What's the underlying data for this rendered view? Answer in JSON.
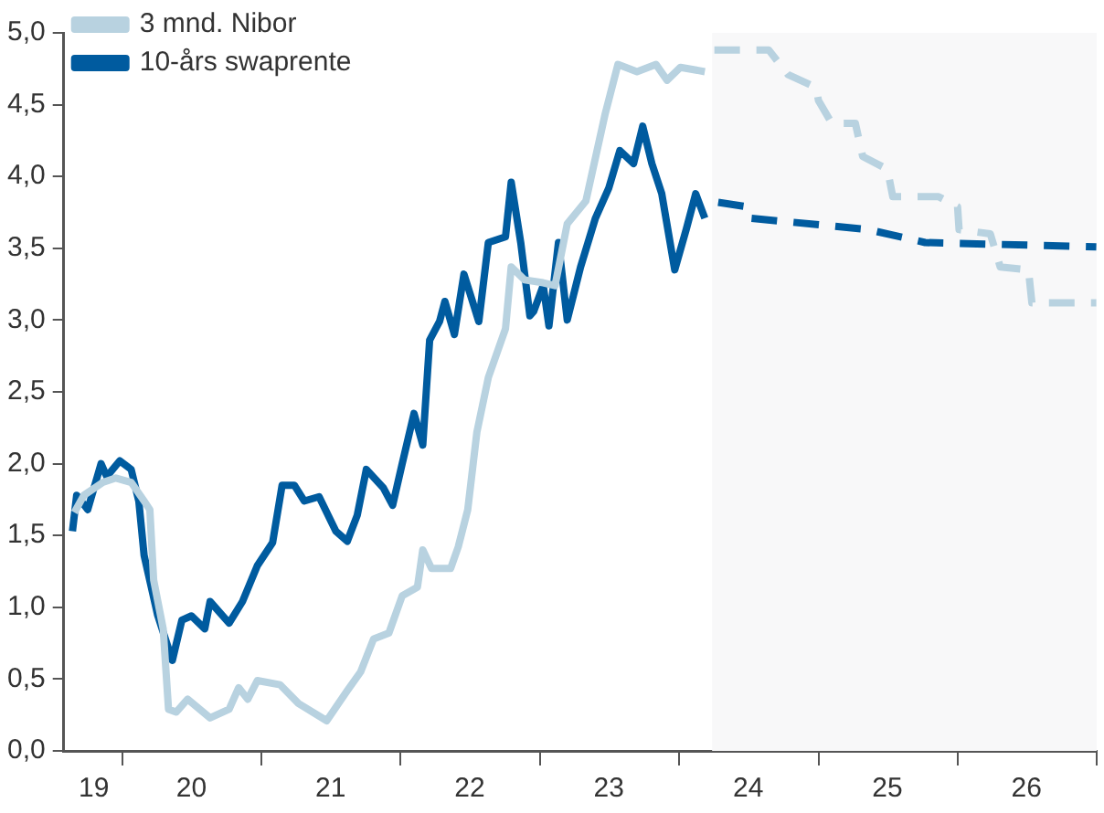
{
  "chart_data": {
    "type": "line",
    "xlim": [
      "2019-08-01",
      "2027-01-01"
    ],
    "ylim": [
      0,
      5
    ],
    "yticks": [
      {
        "value": 0,
        "label": "0,0"
      },
      {
        "value": 0.5,
        "label": "0,5"
      },
      {
        "value": 1,
        "label": "1,0"
      },
      {
        "value": 1.5,
        "label": "1,5"
      },
      {
        "value": 2,
        "label": "2,0"
      },
      {
        "value": 2.5,
        "label": "2,5"
      },
      {
        "value": 3,
        "label": "3,0"
      },
      {
        "value": 3.5,
        "label": "3,5"
      },
      {
        "value": 4,
        "label": "4,0"
      },
      {
        "value": 4.5,
        "label": "4,5"
      },
      {
        "value": 5,
        "label": "5,0"
      }
    ],
    "xticks": [
      {
        "value": "2019-10-19",
        "label": "19"
      },
      {
        "value": "2020-01-01",
        "label": null
      },
      {
        "value": "2020-07-01",
        "label": "20"
      },
      {
        "value": "2021-01-01",
        "label": null
      },
      {
        "value": "2021-07-01",
        "label": "21"
      },
      {
        "value": "2022-01-01",
        "label": null
      },
      {
        "value": "2022-07-01",
        "label": "22"
      },
      {
        "value": "2023-01-01",
        "label": null
      },
      {
        "value": "2023-07-01",
        "label": "23"
      },
      {
        "value": "2024-01-01",
        "label": null
      },
      {
        "value": "2024-07-01",
        "label": "24"
      },
      {
        "value": "2025-01-01",
        "label": null
      },
      {
        "value": "2025-07-01",
        "label": "25"
      },
      {
        "value": "2026-01-01",
        "label": null
      },
      {
        "value": "2026-07-01",
        "label": "26"
      },
      {
        "value": "2027-01-01",
        "label": null
      }
    ],
    "grid": false,
    "legend": "top left",
    "marker": "none",
    "bands": [
      {
        "axis": "x",
        "from": "2024-03-28",
        "to": "2027-01-01",
        "color": "#f8f8f9"
      }
    ],
    "series": [
      {
        "name": "3 mnd. Nibor",
        "color": "#b8d2e0",
        "line_style": "solid",
        "x": [
          "2019-08-29",
          "2019-09-23",
          "2019-11-12",
          "2019-12-16",
          "2020-01-25",
          "2020-02-28",
          "2020-03-14",
          "2020-03-24",
          "2020-04-18",
          "2020-05-02",
          "2020-05-22",
          "2020-06-21",
          "2020-08-19",
          "2020-10-08",
          "2020-11-02",
          "2020-11-26",
          "2020-12-21",
          "2021-02-19",
          "2021-04-08",
          "2021-06-21",
          "2021-08-14",
          "2021-09-18",
          "2021-10-22",
          "2021-12-01",
          "2022-01-05",
          "2022-02-14",
          "2022-02-28",
          "2022-03-23",
          "2022-05-12",
          "2022-06-01",
          "2022-06-26",
          "2022-07-20",
          "2022-08-19",
          "2022-10-03",
          "2022-10-18",
          "2022-11-22",
          "2023-01-10",
          "2023-02-10",
          "2023-03-14",
          "2023-05-02",
          "2023-06-21",
          "2023-07-25",
          "2023-09-13",
          "2023-11-02",
          "2023-12-01",
          "2024-01-05",
          "2024-03-09"
        ],
        "values": [
          1.66,
          1.78,
          1.87,
          1.9,
          1.87,
          1.74,
          1.68,
          1.19,
          0.85,
          0.29,
          0.27,
          0.36,
          0.23,
          0.29,
          0.44,
          0.36,
          0.49,
          0.46,
          0.33,
          0.21,
          0.42,
          0.55,
          0.78,
          0.82,
          1.08,
          1.14,
          1.4,
          1.27,
          1.27,
          1.42,
          1.68,
          2.22,
          2.6,
          2.94,
          3.37,
          3.28,
          3.26,
          3.24,
          3.67,
          3.83,
          4.43,
          4.78,
          4.73,
          4.78,
          4.67,
          4.76,
          4.73
        ]
      },
      {
        "name": "10-års swaprente",
        "color": "#005b9f",
        "line_style": "solid",
        "x": [
          "2019-08-24",
          "2019-09-04",
          "2019-10-03",
          "2019-11-07",
          "2019-11-22",
          "2019-12-26",
          "2020-01-25",
          "2020-02-14",
          "2020-02-28",
          "2020-04-03",
          "2020-05-12",
          "2020-06-06",
          "2020-07-01",
          "2020-08-05",
          "2020-08-19",
          "2020-10-08",
          "2020-11-12",
          "2020-12-21",
          "2021-01-30",
          "2021-02-24",
          "2021-03-28",
          "2021-04-23",
          "2021-06-01",
          "2021-07-15",
          "2021-08-14",
          "2021-09-09",
          "2021-10-03",
          "2021-11-17",
          "2021-12-11",
          "2022-01-05",
          "2022-02-05",
          "2022-02-28",
          "2022-03-18",
          "2022-04-13",
          "2022-04-27",
          "2022-05-22",
          "2022-06-16",
          "2022-07-25",
          "2022-08-19",
          "2022-10-03",
          "2022-10-18",
          "2022-11-12",
          "2022-12-06",
          "2022-12-16",
          "2023-01-10",
          "2023-01-25",
          "2023-02-19",
          "2023-03-14",
          "2023-04-18",
          "2023-05-27",
          "2023-07-01",
          "2023-07-30",
          "2023-09-04",
          "2023-09-28",
          "2023-10-22",
          "2023-11-17",
          "2023-12-21",
          "2024-01-20",
          "2024-02-14",
          "2024-03-09"
        ],
        "values": [
          1.53,
          1.78,
          1.68,
          2.0,
          1.91,
          2.02,
          1.96,
          1.74,
          1.36,
          0.95,
          0.63,
          0.91,
          0.94,
          0.85,
          1.04,
          0.89,
          1.04,
          1.29,
          1.45,
          1.85,
          1.85,
          1.74,
          1.77,
          1.53,
          1.46,
          1.64,
          1.96,
          1.83,
          1.71,
          2.0,
          2.35,
          2.13,
          2.86,
          2.99,
          3.13,
          2.9,
          3.32,
          2.99,
          3.54,
          3.58,
          3.96,
          3.54,
          3.03,
          3.06,
          3.24,
          2.96,
          3.54,
          3.0,
          3.37,
          3.71,
          3.92,
          4.18,
          4.09,
          4.35,
          4.09,
          3.88,
          3.35,
          3.63,
          3.88,
          3.71
        ]
      },
      {
        "color": "#b8d2e0",
        "line_style": "dashed",
        "x": [
          "2024-04-03",
          "2024-08-24",
          "2024-10-13",
          "2024-12-26",
          "2025-01-01",
          "2025-02-05",
          "2025-04-08",
          "2025-04-27",
          "2025-07-01",
          "2025-07-15",
          "2025-11-12",
          "2026-01-01",
          "2026-01-05",
          "2026-03-28",
          "2026-04-23",
          "2026-07-06",
          "2026-07-15",
          "2026-12-31"
        ],
        "values": [
          4.88,
          4.88,
          4.71,
          4.62,
          4.53,
          4.37,
          4.37,
          4.14,
          4.05,
          3.86,
          3.86,
          3.79,
          3.63,
          3.6,
          3.37,
          3.35,
          3.12,
          3.12
        ]
      },
      {
        "color": "#005b9f",
        "line_style": "dashed",
        "x": [
          "2024-04-13",
          "2024-06-26",
          "2024-07-06",
          "2025-05-12",
          "2025-10-08",
          "2026-12-31"
        ],
        "values": [
          3.82,
          3.79,
          3.71,
          3.63,
          3.54,
          3.51
        ]
      }
    ]
  }
}
